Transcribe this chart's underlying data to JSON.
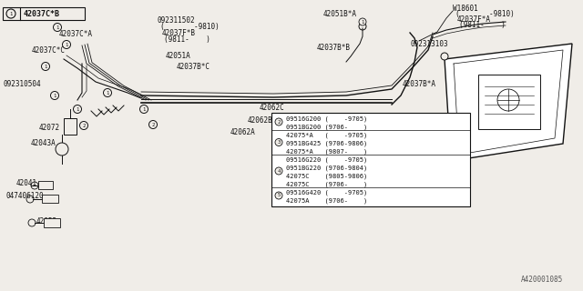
{
  "bg_color": "#f0ede8",
  "line_color": "#111111",
  "fig_width": 6.4,
  "fig_height": 3.2,
  "dpi": 100,
  "footer": "A420001085",
  "parts_table": {
    "rows": [
      {
        "num": "2",
        "parts": [
          "09516G200 (    -9705)",
          "0951BG200 (9706-    )"
        ]
      },
      {
        "num": "3",
        "parts": [
          "42075*A   (    -9705)",
          "0951BG425 (9706-9806)",
          "42075*A   (9807-    )"
        ]
      },
      {
        "num": "4",
        "parts": [
          "09516G220 (    -9705)",
          "0951BG220 (9706-9804)",
          "42075C    (9805-9806)",
          "42075C    (9706-    )"
        ]
      },
      {
        "num": "5",
        "parts": [
          "09516G420 (    -9705)",
          "42075A    (9706-    )"
        ]
      }
    ]
  }
}
